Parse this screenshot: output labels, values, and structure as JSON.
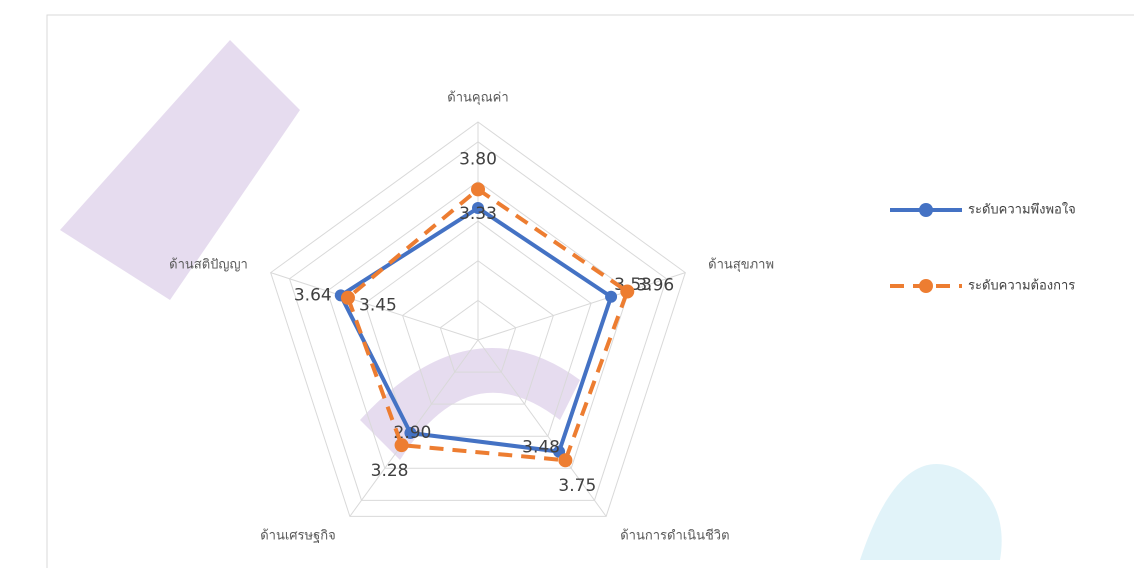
{
  "chart_data": {
    "type": "radar",
    "categories": [
      "ด้านคุณค่า",
      "ด้านสุขภาพ",
      "ด้านการดำเนินชีวิต",
      "ด้านเศรษฐกิจ",
      "ด้านสติปัญญา"
    ],
    "series": [
      {
        "name": "ระดับความพึงพอใจ",
        "color": "#4472c4",
        "values": [
          3.33,
          3.53,
          3.48,
          2.9,
          3.64
        ],
        "value_labels": [
          "3.33",
          "3.53",
          "3.48",
          "2.90",
          "3.64"
        ]
      },
      {
        "name": "ระดับความต้องการ",
        "color": "#ed7d31",
        "values": [
          3.8,
          3.96,
          3.75,
          3.28,
          3.45
        ],
        "value_labels": [
          "3.80",
          "3.96",
          "3.75",
          "3.28",
          "3.45"
        ]
      }
    ],
    "ylim": [
      0,
      5.5
    ],
    "yticks": [
      1,
      2,
      3,
      4,
      5
    ],
    "grid": true
  }
}
